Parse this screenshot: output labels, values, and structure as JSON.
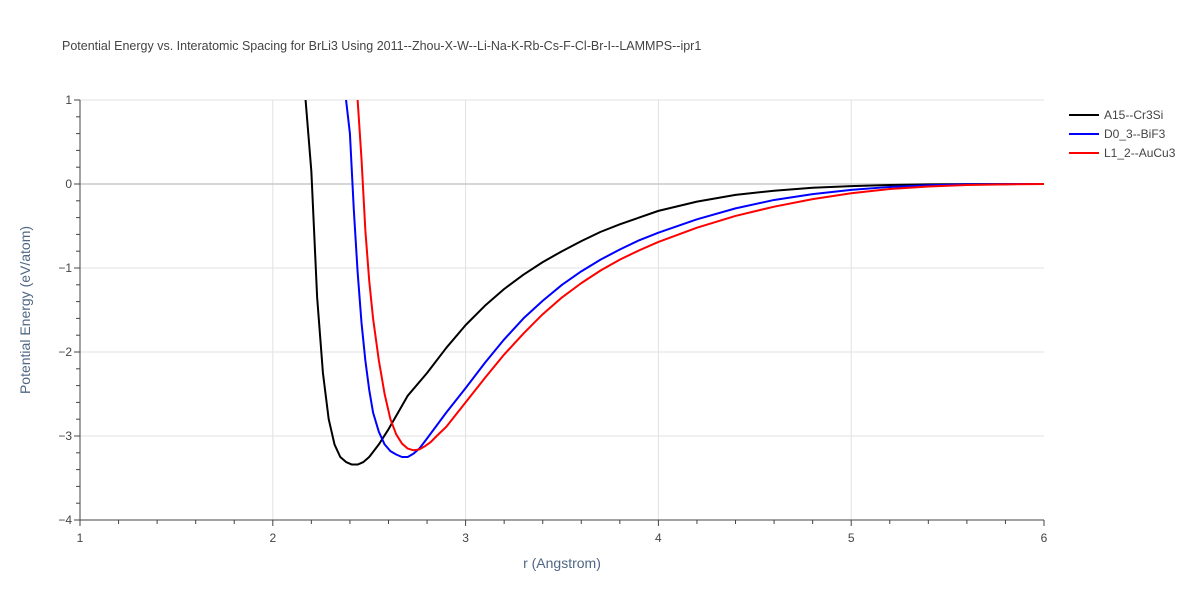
{
  "chart_data": {
    "type": "line",
    "title": "Potential Energy vs. Interatomic Spacing for BrLi3 Using 2011--Zhou-X-W--Li-Na-K-Rb-Cs-F-Cl-Br-I--LAMMPS--ipr1",
    "xlabel": "r (Angstrom)",
    "ylabel": "Potential Energy (eV/atom)",
    "xlim": [
      1,
      6
    ],
    "ylim": [
      -4,
      1
    ],
    "x_ticks": [
      {
        "value": 1,
        "label": "1"
      },
      {
        "value": 2,
        "label": "2"
      },
      {
        "value": 3,
        "label": "3"
      },
      {
        "value": 4,
        "label": "4"
      },
      {
        "value": 5,
        "label": "5"
      },
      {
        "value": 6,
        "label": "6"
      }
    ],
    "y_ticks": [
      {
        "value": 1,
        "label": "1"
      },
      {
        "value": 0,
        "label": "0"
      },
      {
        "value": -1,
        "label": "−1"
      },
      {
        "value": -2,
        "label": "−2"
      },
      {
        "value": -3,
        "label": "−3"
      },
      {
        "value": -4,
        "label": "−4"
      }
    ],
    "grid": true,
    "legend_position": "top-right",
    "series": [
      {
        "name": "A15--Cr3Si",
        "color": "#000000",
        "x": [
          2.17,
          2.2,
          2.23,
          2.26,
          2.29,
          2.32,
          2.35,
          2.38,
          2.41,
          2.44,
          2.47,
          2.5,
          2.55,
          2.6,
          2.65,
          2.7,
          2.8,
          2.9,
          3.0,
          3.1,
          3.2,
          3.3,
          3.4,
          3.5,
          3.6,
          3.7,
          3.8,
          3.9,
          4.0,
          4.2,
          4.4,
          4.6,
          4.8,
          5.0,
          5.2,
          5.4,
          5.6,
          5.8,
          6.0
        ],
        "y": [
          1.0,
          0.15,
          -1.35,
          -2.25,
          -2.8,
          -3.1,
          -3.25,
          -3.31,
          -3.34,
          -3.34,
          -3.31,
          -3.25,
          -3.1,
          -2.92,
          -2.72,
          -2.52,
          -2.25,
          -1.95,
          -1.68,
          -1.45,
          -1.25,
          -1.08,
          -0.93,
          -0.8,
          -0.68,
          -0.57,
          -0.48,
          -0.4,
          -0.32,
          -0.21,
          -0.13,
          -0.08,
          -0.045,
          -0.025,
          -0.012,
          -0.005,
          -0.002,
          -0.001,
          0.0
        ]
      },
      {
        "name": "D0_3--BiF3",
        "color": "#0000ff",
        "x": [
          2.38,
          2.4,
          2.42,
          2.44,
          2.46,
          2.48,
          2.5,
          2.52,
          2.55,
          2.58,
          2.61,
          2.64,
          2.67,
          2.7,
          2.73,
          2.76,
          2.8,
          2.9,
          3.0,
          3.1,
          3.2,
          3.3,
          3.4,
          3.5,
          3.6,
          3.7,
          3.8,
          3.9,
          4.0,
          4.2,
          4.4,
          4.6,
          4.8,
          5.0,
          5.2,
          5.4,
          5.6,
          5.8,
          6.0
        ],
        "y": [
          1.0,
          0.6,
          -0.3,
          -1.05,
          -1.65,
          -2.1,
          -2.45,
          -2.72,
          -2.95,
          -3.1,
          -3.18,
          -3.22,
          -3.25,
          -3.25,
          -3.21,
          -3.15,
          -3.03,
          -2.72,
          -2.43,
          -2.13,
          -1.85,
          -1.6,
          -1.39,
          -1.2,
          -1.04,
          -0.9,
          -0.78,
          -0.67,
          -0.58,
          -0.42,
          -0.29,
          -0.19,
          -0.12,
          -0.07,
          -0.035,
          -0.015,
          -0.005,
          -0.001,
          0.0
        ]
      },
      {
        "name": "L1_2--AuCu3",
        "color": "#ff0000",
        "x": [
          2.44,
          2.46,
          2.48,
          2.5,
          2.52,
          2.55,
          2.58,
          2.61,
          2.64,
          2.67,
          2.7,
          2.73,
          2.76,
          2.79,
          2.82,
          2.85,
          2.9,
          3.0,
          3.1,
          3.2,
          3.3,
          3.4,
          3.5,
          3.6,
          3.7,
          3.8,
          3.9,
          4.0,
          4.2,
          4.4,
          4.6,
          4.8,
          5.0,
          5.2,
          5.4,
          5.6,
          5.8,
          6.0
        ],
        "y": [
          1.0,
          0.3,
          -0.55,
          -1.15,
          -1.6,
          -2.1,
          -2.5,
          -2.8,
          -2.98,
          -3.09,
          -3.15,
          -3.17,
          -3.16,
          -3.12,
          -3.07,
          -3.0,
          -2.89,
          -2.6,
          -2.31,
          -2.03,
          -1.78,
          -1.55,
          -1.35,
          -1.18,
          -1.03,
          -0.9,
          -0.79,
          -0.69,
          -0.52,
          -0.38,
          -0.27,
          -0.18,
          -0.11,
          -0.06,
          -0.03,
          -0.012,
          -0.004,
          0.0
        ]
      }
    ]
  }
}
